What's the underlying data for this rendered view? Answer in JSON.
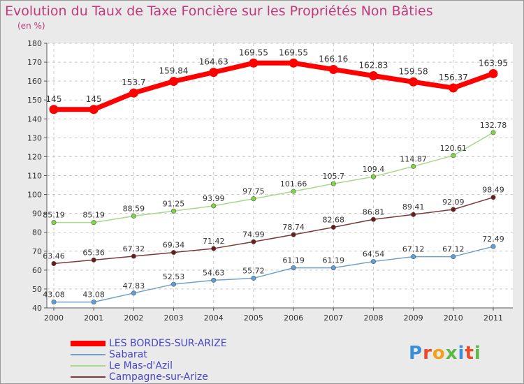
{
  "title": "Evolution du Taux de Taxe Foncière sur les Propriétés Non Bâties",
  "unit_label": "(en %)",
  "logo_text": "Proxiti",
  "chart_data": {
    "type": "line",
    "x": [
      "2000",
      "2001",
      "2002",
      "2003",
      "2004",
      "2005",
      "2006",
      "2007",
      "2008",
      "2009",
      "2010",
      "2011"
    ],
    "ylim": [
      40,
      180
    ],
    "yticks": [
      40,
      50,
      60,
      70,
      80,
      90,
      100,
      110,
      120,
      130,
      140,
      150,
      160,
      170,
      180
    ],
    "grid": true,
    "legend_position": "bottom-left",
    "series": [
      {
        "name": "LES BORDES-SUR-ARIZE",
        "color": "#ff0000",
        "marker": "#ff0000",
        "width": 7,
        "values": [
          145,
          145,
          153.7,
          159.84,
          164.63,
          169.55,
          169.55,
          166.16,
          162.83,
          159.58,
          156.37,
          163.95
        ],
        "labels": [
          "145",
          "145",
          "153.7",
          "159.84",
          "164.63",
          "169.55",
          "169.55",
          "166.16",
          "162.83",
          "159.58",
          "156.37",
          "163.95"
        ]
      },
      {
        "name": "Sabarat",
        "color": "#6fa1c8",
        "marker": "#5aa0dc",
        "width": 1.5,
        "values": [
          43.08,
          43.08,
          47.83,
          52.53,
          54.63,
          55.72,
          61.19,
          61.19,
          64.54,
          67.12,
          67.12,
          72.49
        ],
        "labels": [
          "43.08",
          "43.08",
          "47.83",
          "52.53",
          "54.63",
          "55.72",
          "61.19",
          "61.19",
          "64.54",
          "67.12",
          "67.12",
          "72.49"
        ]
      },
      {
        "name": "Le Mas-d'Azil",
        "color": "#a6d98a",
        "marker": "#7fd63f",
        "width": 1.5,
        "values": [
          85.19,
          85.19,
          88.59,
          91.25,
          93.99,
          97.75,
          101.66,
          105.7,
          109.4,
          114.87,
          120.61,
          132.78
        ],
        "labels": [
          "85.19",
          "85.19",
          "88.59",
          "91.25",
          "93.99",
          "97.75",
          "101.66",
          "105.7",
          "109.4",
          "114.87",
          "120.61",
          "132.78"
        ]
      },
      {
        "name": "Campagne-sur-Arize",
        "color": "#7a3a3a",
        "marker": "#6a1a1a",
        "width": 1.5,
        "values": [
          63.46,
          65.36,
          67.32,
          69.34,
          71.42,
          74.99,
          78.74,
          82.68,
          86.81,
          89.41,
          92.09,
          98.49
        ],
        "labels": [
          "63.46",
          "65.36",
          "67.32",
          "69.34",
          "71.42",
          "74.99",
          "78.74",
          "82.68",
          "86.81",
          "89.41",
          "92.09",
          "98.49"
        ]
      }
    ]
  }
}
